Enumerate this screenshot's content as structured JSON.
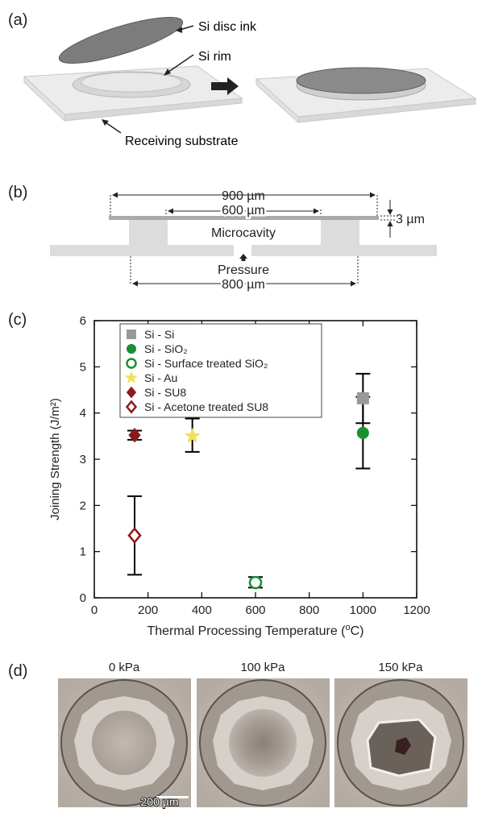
{
  "panel_a": {
    "label": "(a)",
    "disc_label": "Si disc ink",
    "rim_label": "Si rim",
    "substrate_label": "Receiving substrate"
  },
  "panel_b": {
    "label": "(b)",
    "dim_900": "900 µm",
    "dim_600": "600 µm",
    "dim_800": "800 µm",
    "dim_3": "3 µm",
    "cavity_label": "Microcavity",
    "pressure_label": "Pressure"
  },
  "panel_c": {
    "label": "(c)"
  },
  "chart_data": {
    "type": "scatter",
    "xlabel_main": "Thermal Processing Temperature (",
    "xlabel_sup": "o",
    "xlabel_end": "C)",
    "ylabel": "Joining Strength (J/m²)",
    "xlim": [
      0,
      1200
    ],
    "ylim": [
      0,
      6
    ],
    "xticks": [
      "0",
      "200",
      "400",
      "600",
      "800",
      "1000",
      "1200"
    ],
    "yticks": [
      "0",
      "1",
      "2",
      "3",
      "4",
      "5",
      "6"
    ],
    "legend_placement": "top-left",
    "series": [
      {
        "name": "Si - Si",
        "marker": "square",
        "color": "#999999",
        "fill": true,
        "points": [
          {
            "x": 1000,
            "y": 4.32,
            "ylo": 3.78,
            "yhi": 4.85
          }
        ]
      },
      {
        "name": "Si - SiO₂",
        "marker": "circle",
        "color": "#1a8f2e",
        "fill": true,
        "points": [
          {
            "x": 1000,
            "y": 3.57,
            "ylo": 2.8,
            "yhi": 4.35
          }
        ]
      },
      {
        "name": "Si - Surface treated SiO₂",
        "marker": "circle",
        "color": "#1a8f2e",
        "fill": false,
        "points": [
          {
            "x": 600,
            "y": 0.33,
            "ylo": 0.22,
            "yhi": 0.45
          }
        ]
      },
      {
        "name": "Si - Au",
        "marker": "star",
        "color": "#f2e05a",
        "fill": true,
        "points": [
          {
            "x": 365,
            "y": 3.5,
            "ylo": 3.16,
            "yhi": 3.88
          }
        ]
      },
      {
        "name": "Si - SU8",
        "marker": "diamond",
        "color": "#8b1a1a",
        "fill": true,
        "points": [
          {
            "x": 150,
            "y": 3.52,
            "ylo": 3.42,
            "yhi": 3.62
          }
        ]
      },
      {
        "name": "Si - Acetone treated SU8",
        "marker": "diamond",
        "color": "#8b1a1a",
        "fill": false,
        "points": [
          {
            "x": 150,
            "y": 1.35,
            "ylo": 0.5,
            "yhi": 2.2
          }
        ]
      }
    ]
  },
  "panel_d": {
    "label": "(d)",
    "captions": [
      "0 kPa",
      "100 kPa",
      "150 kPa"
    ],
    "scale_label": "200 µm"
  }
}
